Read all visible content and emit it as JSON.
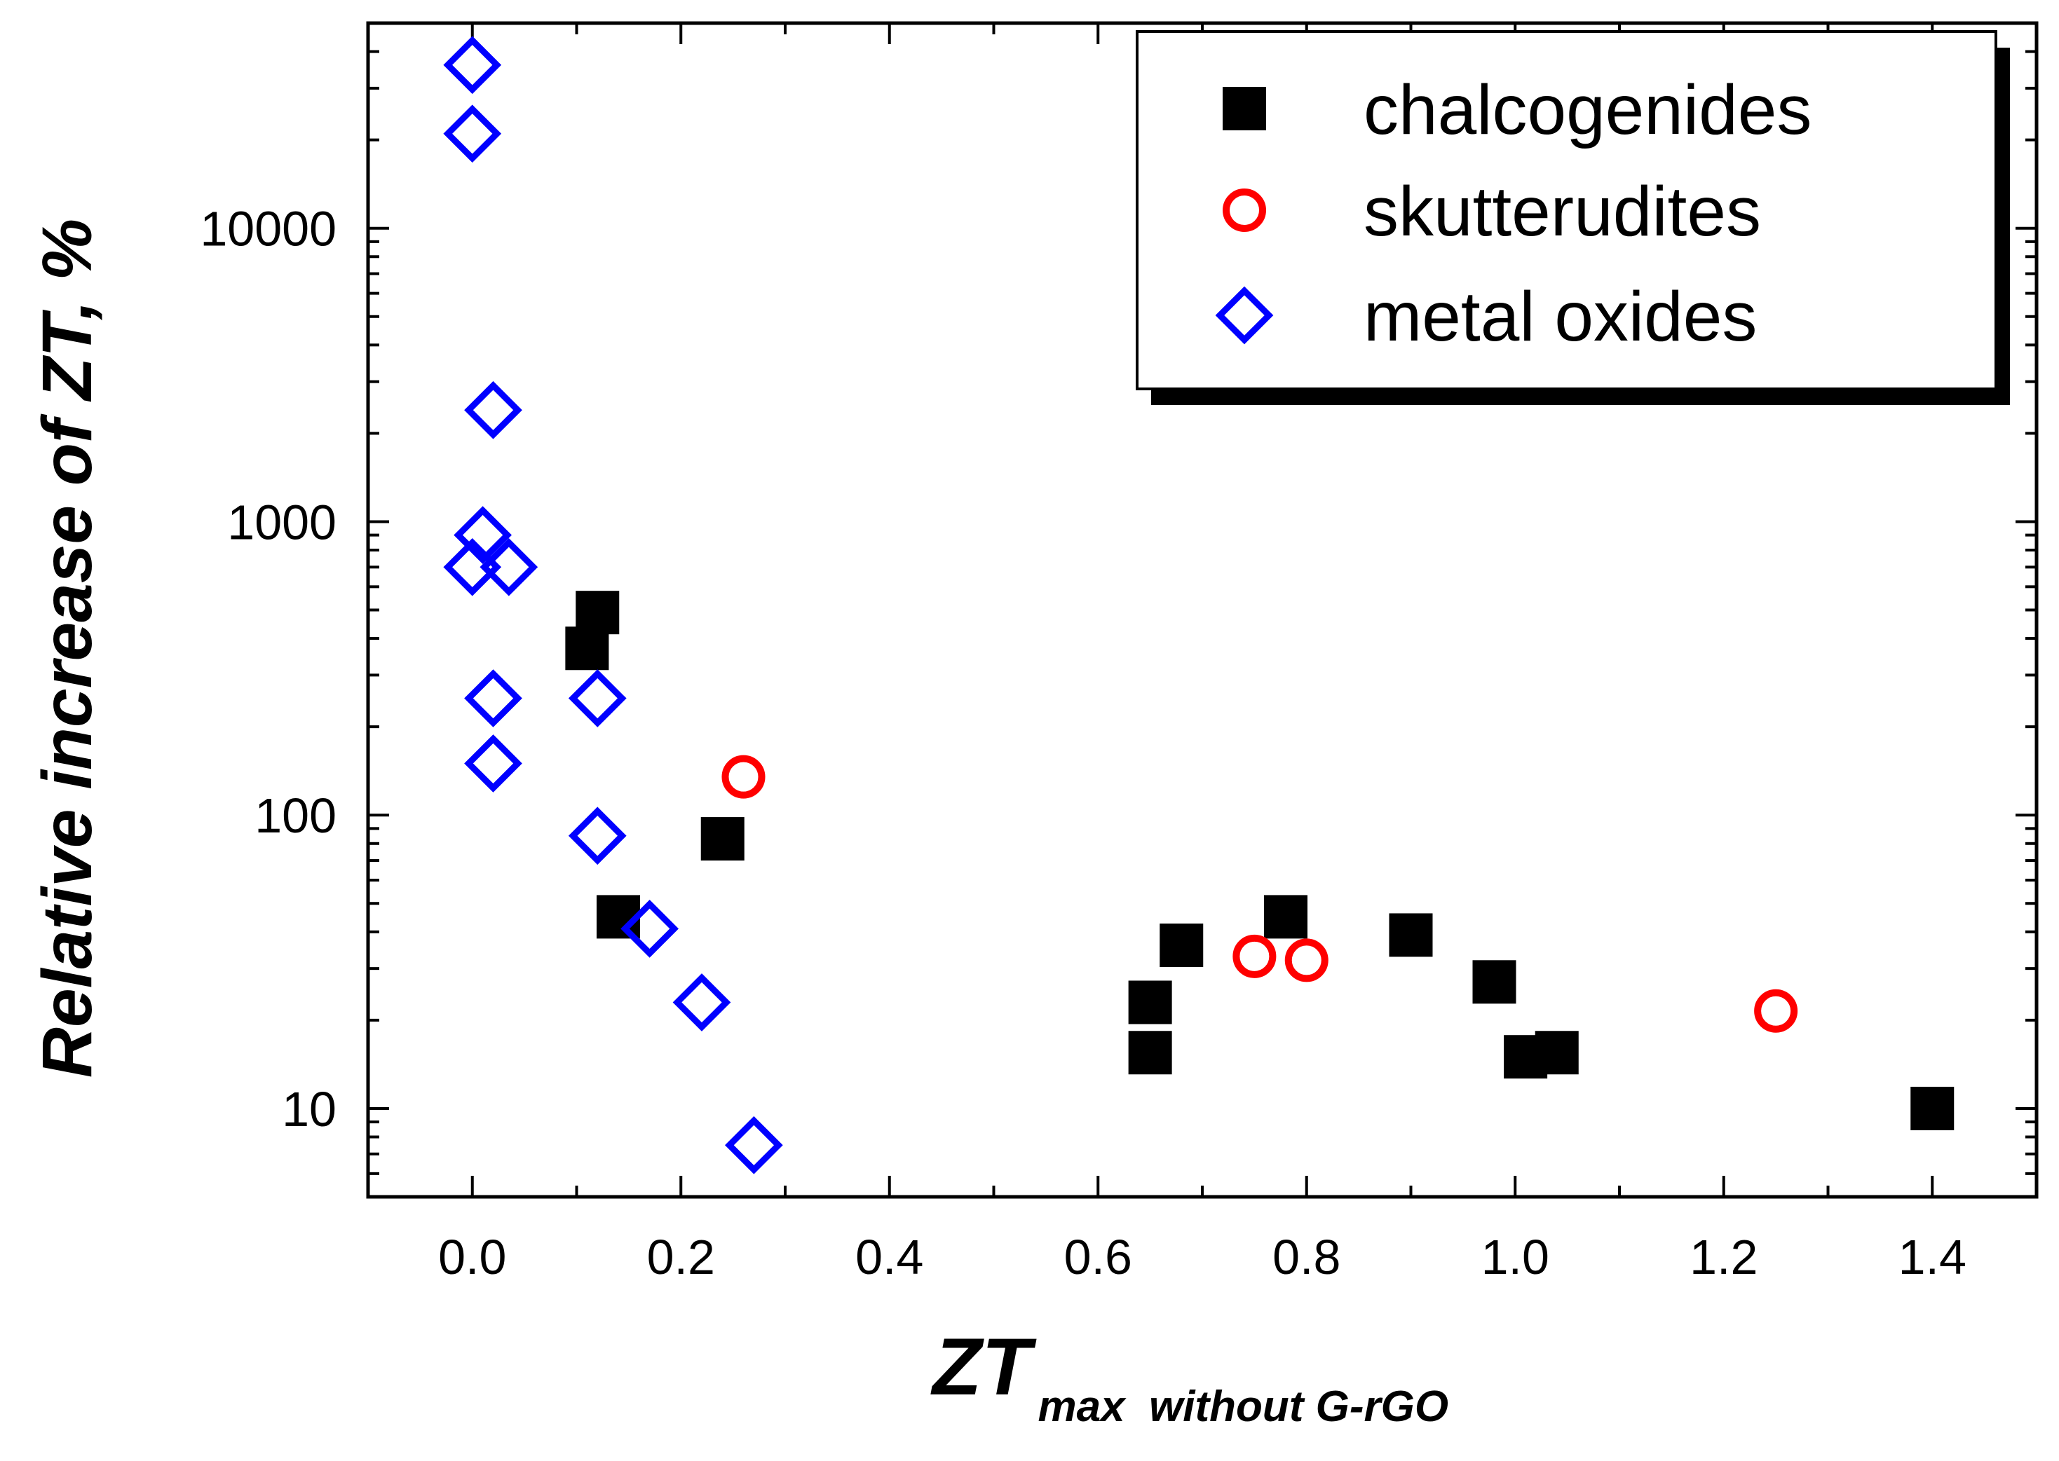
{
  "chart_data": {
    "type": "scatter",
    "title": "",
    "xlabel": {
      "main": "ZT",
      "subscript": "max  without G-rGO"
    },
    "ylabel": {
      "prefix": "Relative increase of ",
      "italic_part": "ZT",
      "suffix": ", %"
    },
    "xlim": [
      -0.1,
      1.5
    ],
    "ylim": [
      5,
      50000
    ],
    "yscale": "log",
    "xticks": [
      0.0,
      0.2,
      0.4,
      0.6,
      0.8,
      1.0,
      1.2,
      1.4
    ],
    "xtick_labels": [
      "0.0",
      "0.2",
      "0.4",
      "0.6",
      "0.8",
      "1.0",
      "1.2",
      "1.4"
    ],
    "yticks": [
      10,
      100,
      1000,
      10000
    ],
    "ytick_labels": [
      "10",
      "100",
      "1000",
      "10000"
    ],
    "grid": false,
    "legend_position": "top-right",
    "series": [
      {
        "name": "chalcogenides",
        "marker": "filled-square",
        "color": "#000000",
        "points": [
          [
            0.11,
            370
          ],
          [
            0.12,
            490
          ],
          [
            0.14,
            45
          ],
          [
            0.24,
            83
          ],
          [
            0.65,
            23
          ],
          [
            0.65,
            15.5
          ],
          [
            0.68,
            36
          ],
          [
            0.78,
            45
          ],
          [
            0.9,
            39
          ],
          [
            0.98,
            27
          ],
          [
            1.01,
            15
          ],
          [
            1.04,
            15.5
          ],
          [
            1.4,
            10
          ]
        ]
      },
      {
        "name": "skutterudites",
        "marker": "open-circle",
        "color": "#ff0000",
        "points": [
          [
            0.26,
            135
          ],
          [
            0.75,
            33
          ],
          [
            0.8,
            32
          ],
          [
            1.25,
            21.5
          ]
        ]
      },
      {
        "name": "metal oxides",
        "marker": "open-diamond",
        "color": "#0000ff",
        "points": [
          [
            0.0,
            36000
          ],
          [
            0.0,
            21000
          ],
          [
            0.02,
            2400
          ],
          [
            0.01,
            900
          ],
          [
            0.0,
            700
          ],
          [
            0.035,
            700
          ],
          [
            0.02,
            250
          ],
          [
            0.12,
            250
          ],
          [
            0.02,
            150
          ],
          [
            0.12,
            85
          ],
          [
            0.17,
            41
          ],
          [
            0.22,
            23
          ],
          [
            0.27,
            7.5
          ]
        ]
      }
    ]
  }
}
